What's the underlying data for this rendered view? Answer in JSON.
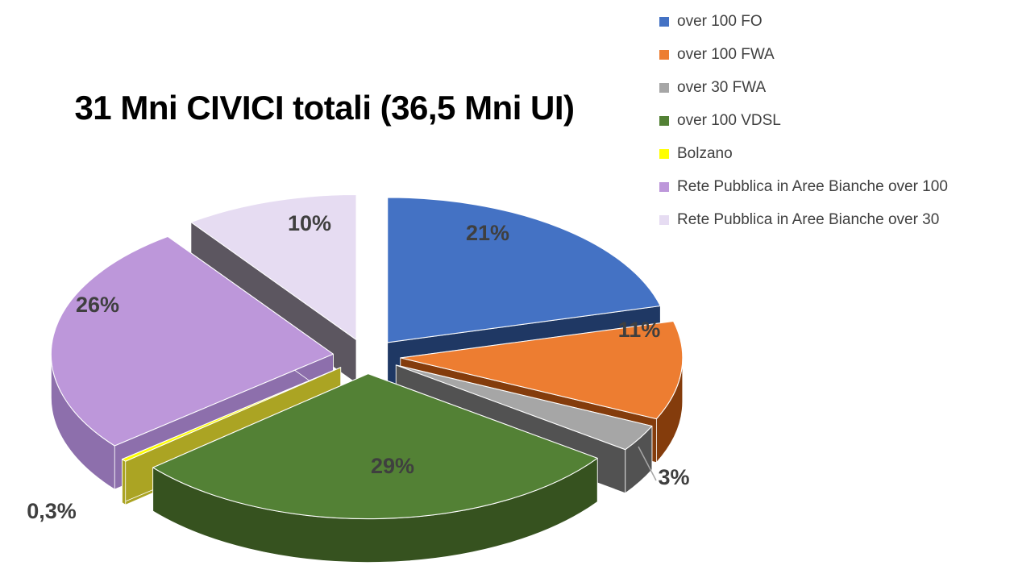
{
  "chart_data": {
    "type": "pie",
    "style": "3d-exploded",
    "title": "31 Mni CIVICI totali (36,5 Mni UI)",
    "labels": [
      "over 100 FO",
      "over 100 FWA",
      "over 30 FWA",
      "over 100 VDSL",
      "Bolzano",
      "Rete Pubblica in Aree Bianche over 100",
      "Rete Pubblica in Aree Bianche over 30"
    ],
    "values": [
      21,
      11,
      3,
      29,
      0.3,
      26,
      10
    ],
    "value_labels": [
      "21%",
      "11%",
      "3%",
      "29%",
      "0,3%",
      "26%",
      "10%"
    ],
    "unit": "%",
    "colors": [
      "#4472C4",
      "#ED7D31",
      "#A6A6A6",
      "#538135",
      "#FFFF00",
      "#BD97DA",
      "#E6DCF2"
    ],
    "side_colors": [
      "#1F3864",
      "#843C0C",
      "#525252",
      "#36521F",
      "#ABA423",
      "#8D6FAC",
      "#5C5660"
    ],
    "label_color": "#3F3F3F",
    "legend_text_color": "#404040",
    "legend_position": "right",
    "start_angle_deg": 0,
    "direction": "clockwise",
    "background": "#FFFFFF"
  }
}
